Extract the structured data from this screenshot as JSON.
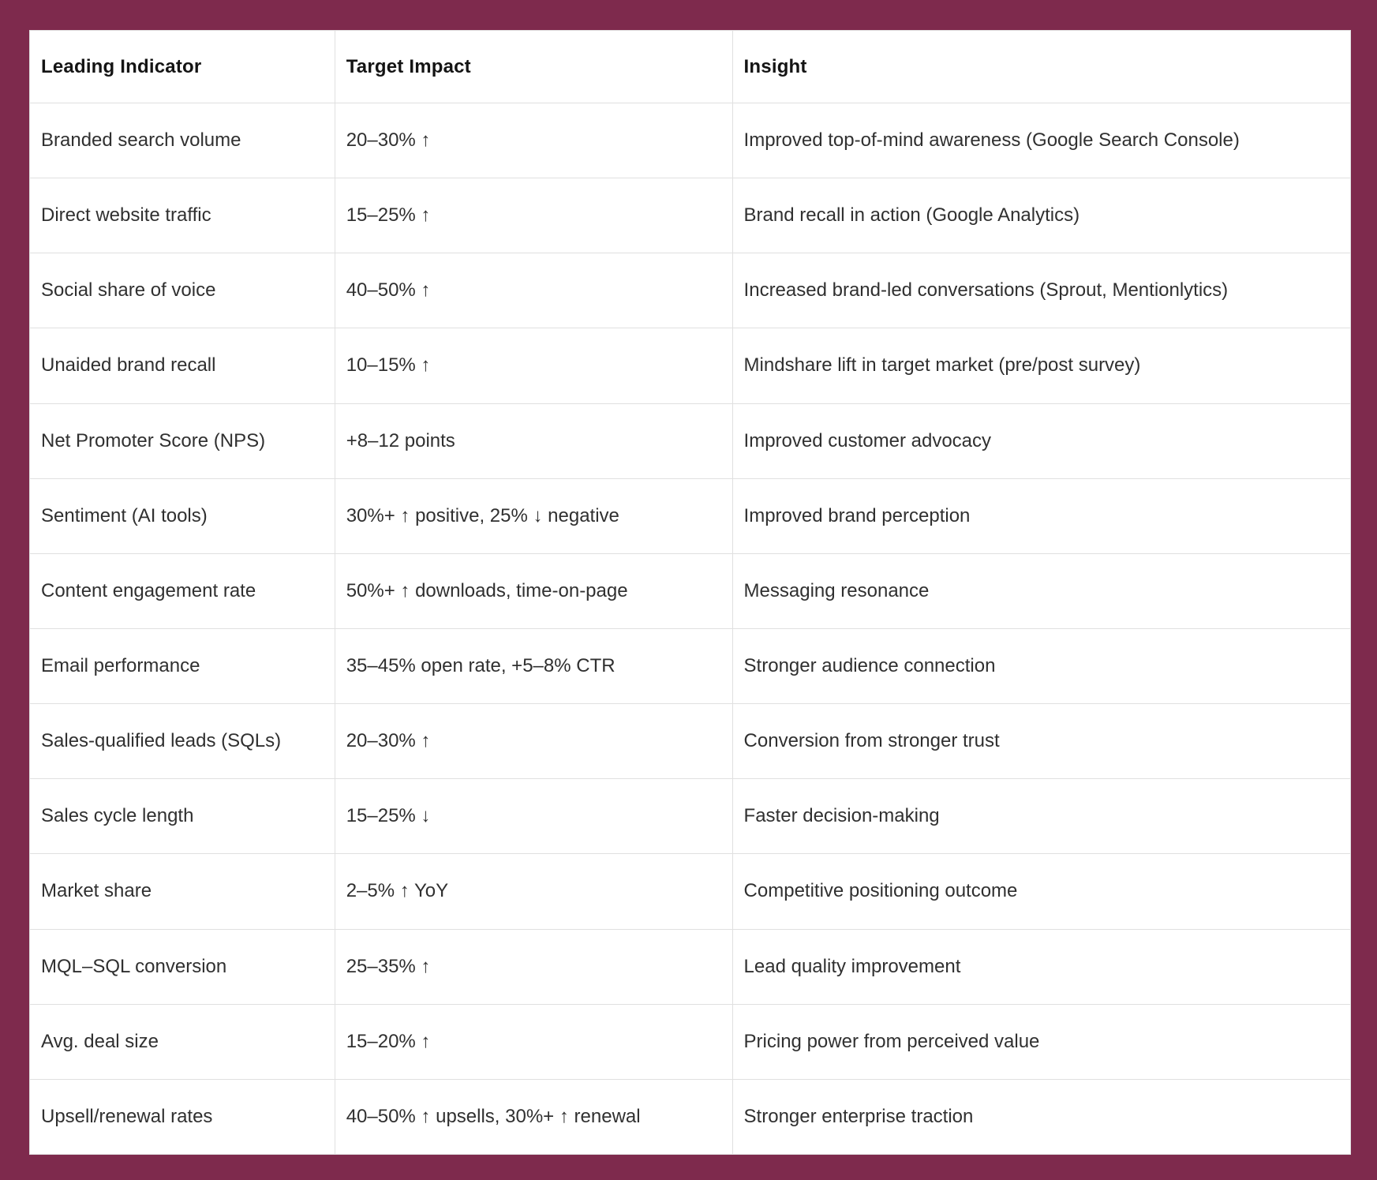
{
  "colors": {
    "frame_background": "#7e2a4d",
    "table_background": "#ffffff",
    "grid_line": "#e0e0e0",
    "header_text": "#141414",
    "body_text": "#303030"
  },
  "table": {
    "headers": [
      "Leading Indicator",
      "Target Impact",
      "Insight"
    ],
    "rows": [
      {
        "indicator": "Branded search volume",
        "impact": "20–30% ↑",
        "insight": "Improved top-of-mind awareness (Google Search Console)"
      },
      {
        "indicator": "Direct website traffic",
        "impact": "15–25% ↑",
        "insight": "Brand recall in action (Google Analytics)"
      },
      {
        "indicator": "Social share of voice",
        "impact": "40–50% ↑",
        "insight": "Increased brand-led conversations (Sprout, Mentionlytics)"
      },
      {
        "indicator": "Unaided brand recall",
        "impact": "10–15% ↑",
        "insight": "Mindshare lift in target market (pre/post survey)"
      },
      {
        "indicator": "Net Promoter Score (NPS)",
        "impact": "+8–12 points",
        "insight": "Improved customer advocacy"
      },
      {
        "indicator": "Sentiment (AI tools)",
        "impact": "30%+ ↑ positive, 25% ↓ negative",
        "insight": "Improved brand perception"
      },
      {
        "indicator": "Content engagement rate",
        "impact": "50%+ ↑ downloads, time-on-page",
        "insight": "Messaging resonance"
      },
      {
        "indicator": "Email performance",
        "impact": "35–45% open rate, +5–8% CTR",
        "insight": "Stronger audience connection"
      },
      {
        "indicator": "Sales-qualified leads (SQLs)",
        "impact": "20–30% ↑",
        "insight": "Conversion from stronger trust"
      },
      {
        "indicator": "Sales cycle length",
        "impact": "15–25% ↓",
        "insight": "Faster decision-making"
      },
      {
        "indicator": "Market share",
        "impact": "2–5% ↑ YoY",
        "insight": "Competitive positioning outcome"
      },
      {
        "indicator": "MQL–SQL conversion",
        "impact": "25–35% ↑",
        "insight": "Lead quality improvement"
      },
      {
        "indicator": "Avg. deal size",
        "impact": "15–20% ↑",
        "insight": "Pricing power from perceived value"
      },
      {
        "indicator": "Upsell/renewal rates",
        "impact": "40–50% ↑ upsells, 30%+ ↑ renewal",
        "insight": "Stronger enterprise traction"
      }
    ]
  }
}
